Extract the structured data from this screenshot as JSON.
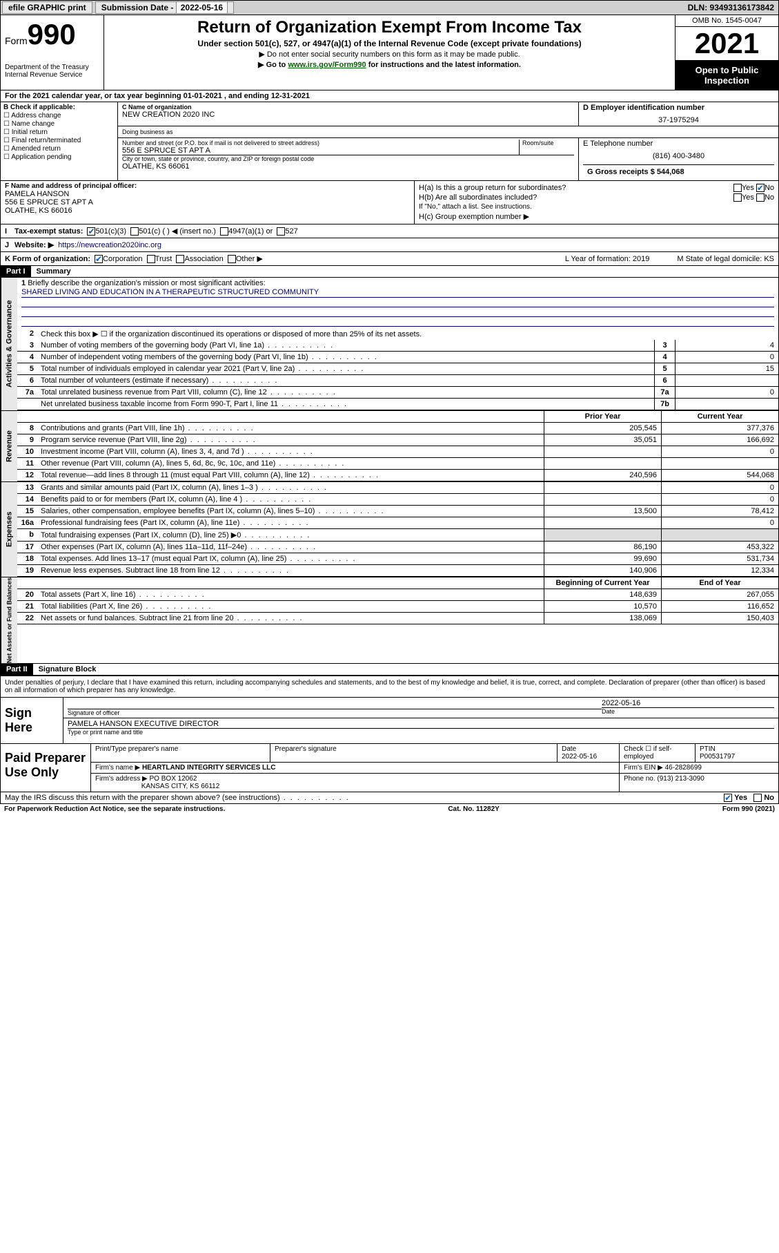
{
  "topbar": {
    "efile": "efile GRAPHIC print",
    "sub_label": "Submission Date - ",
    "sub_date": "2022-05-16",
    "dln": "DLN: 93493136173842"
  },
  "header": {
    "form_word": "Form",
    "form_num": "990",
    "dept": "Department of the Treasury Internal Revenue Service",
    "title": "Return of Organization Exempt From Income Tax",
    "sub": "Under section 501(c), 527, or 4947(a)(1) of the Internal Revenue Code (except private foundations)",
    "note1": "▶ Do not enter social security numbers on this form as it may be made public.",
    "note2_pre": "▶ Go to ",
    "note2_link": "www.irs.gov/Form990",
    "note2_post": " for instructions and the latest information.",
    "omb": "OMB No. 1545-0047",
    "year": "2021",
    "open": "Open to Public Inspection"
  },
  "lineA": "For the 2021 calendar year, or tax year beginning 01-01-2021   , and ending 12-31-2021",
  "boxB": {
    "label": "B Check if applicable:",
    "items": [
      "Address change",
      "Name change",
      "Initial return",
      "Final return/terminated",
      "Amended return",
      "Application pending"
    ]
  },
  "boxC": {
    "name_lbl": "C Name of organization",
    "name": "NEW CREATION 2020 INC",
    "dba_lbl": "Doing business as",
    "addr_lbl": "Number and street (or P.O. box if mail is not delivered to street address)",
    "room_lbl": "Room/suite",
    "addr": "556 E SPRUCE ST APT A",
    "city_lbl": "City or town, state or province, country, and ZIP or foreign postal code",
    "city": "OLATHE, KS  66061"
  },
  "boxD": {
    "lbl": "D Employer identification number",
    "val": "37-1975294"
  },
  "boxE": {
    "lbl": "E Telephone number",
    "val": "(816) 400-3480"
  },
  "boxG": {
    "lbl": "G Gross receipts $",
    "val": "544,068"
  },
  "boxF": {
    "lbl": "F Name and address of principal officer:",
    "name": "PAMELA HANSON",
    "addr1": "556 E SPRUCE ST APT A",
    "addr2": "OLATHE, KS  66016"
  },
  "boxH": {
    "a": "H(a)  Is this a group return for subordinates?",
    "a_yes": "Yes",
    "a_no": "No",
    "b": "H(b)  Are all subordinates included?",
    "b_yes": "Yes",
    "b_no": "No",
    "b_note": "If \"No,\" attach a list. See instructions.",
    "c": "H(c)  Group exemption number ▶"
  },
  "statusI": {
    "lbl": "Tax-exempt status:",
    "opts": [
      "501(c)(3)",
      "501(c) (  ) ◀ (insert no.)",
      "4947(a)(1) or",
      "527"
    ]
  },
  "lineJ": {
    "lbl": "Website: ▶",
    "val": "https://newcreation2020inc.org"
  },
  "lineK": {
    "lbl": "K Form of organization:",
    "opts": [
      "Corporation",
      "Trust",
      "Association",
      "Other ▶"
    ],
    "L": "L Year of formation: 2019",
    "M": "M State of legal domicile: KS"
  },
  "part1": {
    "hdr": "Part I",
    "title": "Summary",
    "side_gov": "Activities & Governance",
    "side_rev": "Revenue",
    "side_exp": "Expenses",
    "side_net": "Net Assets or Fund Balances",
    "q1": "Briefly describe the organization's mission or most significant activities:",
    "mission": "SHARED LIVING AND EDUCATION IN A THERAPEUTIC STRUCTURED COMMUNITY",
    "q2": "Check this box ▶ ☐  if the organization discontinued its operations or disposed of more than 25% of its net assets.",
    "lines_gov": [
      {
        "n": "3",
        "t": "Number of voting members of the governing body (Part VI, line 1a)",
        "b": "3",
        "v": "4"
      },
      {
        "n": "4",
        "t": "Number of independent voting members of the governing body (Part VI, line 1b)",
        "b": "4",
        "v": "0"
      },
      {
        "n": "5",
        "t": "Total number of individuals employed in calendar year 2021 (Part V, line 2a)",
        "b": "5",
        "v": "15"
      },
      {
        "n": "6",
        "t": "Total number of volunteers (estimate if necessary)",
        "b": "6",
        "v": ""
      },
      {
        "n": "7a",
        "t": "Total unrelated business revenue from Part VIII, column (C), line 12",
        "b": "7a",
        "v": "0"
      },
      {
        "n": "",
        "t": "Net unrelated business taxable income from Form 990-T, Part I, line 11",
        "b": "7b",
        "v": ""
      }
    ],
    "col_prior": "Prior Year",
    "col_curr": "Current Year",
    "rev": [
      {
        "n": "8",
        "t": "Contributions and grants (Part VIII, line 1h)",
        "p": "205,545",
        "c": "377,376"
      },
      {
        "n": "9",
        "t": "Program service revenue (Part VIII, line 2g)",
        "p": "35,051",
        "c": "166,692"
      },
      {
        "n": "10",
        "t": "Investment income (Part VIII, column (A), lines 3, 4, and 7d )",
        "p": "",
        "c": "0"
      },
      {
        "n": "11",
        "t": "Other revenue (Part VIII, column (A), lines 5, 6d, 8c, 9c, 10c, and 11e)",
        "p": "",
        "c": ""
      },
      {
        "n": "12",
        "t": "Total revenue—add lines 8 through 11 (must equal Part VIII, column (A), line 12)",
        "p": "240,596",
        "c": "544,068"
      }
    ],
    "exp": [
      {
        "n": "13",
        "t": "Grants and similar amounts paid (Part IX, column (A), lines 1–3 )",
        "p": "",
        "c": "0"
      },
      {
        "n": "14",
        "t": "Benefits paid to or for members (Part IX, column (A), line 4 )",
        "p": "",
        "c": "0"
      },
      {
        "n": "15",
        "t": "Salaries, other compensation, employee benefits (Part IX, column (A), lines 5–10)",
        "p": "13,500",
        "c": "78,412"
      },
      {
        "n": "16a",
        "t": "Professional fundraising fees (Part IX, column (A), line 11e)",
        "p": "",
        "c": "0"
      },
      {
        "n": "b",
        "t": "Total fundraising expenses (Part IX, column (D), line 25) ▶0",
        "p": "GREY",
        "c": "GREY"
      },
      {
        "n": "17",
        "t": "Other expenses (Part IX, column (A), lines 11a–11d, 11f–24e)",
        "p": "86,190",
        "c": "453,322"
      },
      {
        "n": "18",
        "t": "Total expenses. Add lines 13–17 (must equal Part IX, column (A), line 25)",
        "p": "99,690",
        "c": "531,734"
      },
      {
        "n": "19",
        "t": "Revenue less expenses. Subtract line 18 from line 12",
        "p": "140,906",
        "c": "12,334"
      }
    ],
    "col_beg": "Beginning of Current Year",
    "col_end": "End of Year",
    "net": [
      {
        "n": "20",
        "t": "Total assets (Part X, line 16)",
        "p": "148,639",
        "c": "267,055"
      },
      {
        "n": "21",
        "t": "Total liabilities (Part X, line 26)",
        "p": "10,570",
        "c": "116,652"
      },
      {
        "n": "22",
        "t": "Net assets or fund balances. Subtract line 21 from line 20",
        "p": "138,069",
        "c": "150,403"
      }
    ]
  },
  "part2": {
    "hdr": "Part II",
    "title": "Signature Block",
    "decl": "Under penalties of perjury, I declare that I have examined this return, including accompanying schedules and statements, and to the best of my knowledge and belief, it is true, correct, and complete. Declaration of preparer (other than officer) is based on all information of which preparer has any knowledge."
  },
  "sign": {
    "left": "Sign Here",
    "sig_lbl": "Signature of officer",
    "date": "2022-05-16",
    "date_lbl": "Date",
    "name": "PAMELA HANSON  EXECUTIVE DIRECTOR",
    "name_lbl": "Type or print name and title"
  },
  "prep": {
    "left": "Paid Preparer Use Only",
    "cols": [
      "Print/Type preparer's name",
      "Preparer's signature",
      "Date",
      "Check ☐ if self-employed",
      "PTIN"
    ],
    "date": "2022-05-16",
    "ptin": "P00531797",
    "firm_lbl": "Firm's name   ▶",
    "firm": "HEARTLAND INTEGRITY SERVICES LLC",
    "ein_lbl": "Firm's EIN ▶",
    "ein": "46-2828699",
    "addr_lbl": "Firm's address ▶",
    "addr1": "PO BOX 12062",
    "addr2": "KANSAS CITY, KS  66112",
    "phone_lbl": "Phone no.",
    "phone": "(913) 213-3090"
  },
  "may_irs": {
    "q": "May the IRS discuss this return with the preparer shown above? (see instructions)",
    "yes": "Yes",
    "no": "No"
  },
  "footer": {
    "left": "For Paperwork Reduction Act Notice, see the separate instructions.",
    "mid": "Cat. No. 11282Y",
    "right": "Form 990 (2021)"
  }
}
